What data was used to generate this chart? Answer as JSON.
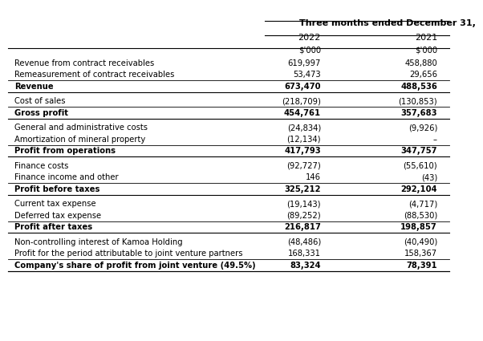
{
  "title": "Three months ended December 31,",
  "col_headers": [
    "2022",
    "2021"
  ],
  "sub_headers": [
    "$'000",
    "$'000"
  ],
  "rows": [
    {
      "label": "Revenue from contract receivables",
      "vals": [
        "619,997",
        "458,880"
      ],
      "bold": false,
      "underline": false,
      "top_line": false,
      "space_before": false
    },
    {
      "label": "Remeasurement of contract receivables",
      "vals": [
        "53,473",
        "29,656"
      ],
      "bold": false,
      "underline": false,
      "top_line": false,
      "space_before": false
    },
    {
      "label": "Revenue",
      "vals": [
        "673,470",
        "488,536"
      ],
      "bold": true,
      "underline": true,
      "top_line": true,
      "space_before": false
    },
    {
      "label": "Cost of sales",
      "vals": [
        "(218,709)",
        "(130,853)"
      ],
      "bold": false,
      "underline": false,
      "top_line": false,
      "space_before": true
    },
    {
      "label": "Gross profit",
      "vals": [
        "454,761",
        "357,683"
      ],
      "bold": true,
      "underline": true,
      "top_line": true,
      "space_before": false
    },
    {
      "label": "General and administrative costs",
      "vals": [
        "(24,834)",
        "(9,926)"
      ],
      "bold": false,
      "underline": false,
      "top_line": false,
      "space_before": true
    },
    {
      "label": "Amortization of mineral property",
      "vals": [
        "(12,134)",
        "–"
      ],
      "bold": false,
      "underline": false,
      "top_line": false,
      "space_before": false
    },
    {
      "label": "Profit from operations",
      "vals": [
        "417,793",
        "347,757"
      ],
      "bold": true,
      "underline": true,
      "top_line": true,
      "space_before": false
    },
    {
      "label": "Finance costs",
      "vals": [
        "(92,727)",
        "(55,610)"
      ],
      "bold": false,
      "underline": false,
      "top_line": false,
      "space_before": true
    },
    {
      "label": "Finance income and other",
      "vals": [
        "146",
        "(43)"
      ],
      "bold": false,
      "underline": false,
      "top_line": false,
      "space_before": false
    },
    {
      "label": "Profit before taxes",
      "vals": [
        "325,212",
        "292,104"
      ],
      "bold": true,
      "underline": true,
      "top_line": true,
      "space_before": false
    },
    {
      "label": "Current tax expense",
      "vals": [
        "(19,143)",
        "(4,717)"
      ],
      "bold": false,
      "underline": false,
      "top_line": false,
      "space_before": true
    },
    {
      "label": "Deferred tax expense",
      "vals": [
        "(89,252)",
        "(88,530)"
      ],
      "bold": false,
      "underline": false,
      "top_line": false,
      "space_before": false
    },
    {
      "label": "Profit after taxes",
      "vals": [
        "216,817",
        "198,857"
      ],
      "bold": true,
      "underline": true,
      "top_line": true,
      "space_before": false
    },
    {
      "label": "Non-controlling interest of Kamoa Holding",
      "vals": [
        "(48,486)",
        "(40,490)"
      ],
      "bold": false,
      "underline": false,
      "top_line": false,
      "space_before": true
    },
    {
      "label": "Profit for the period attributable to joint venture partners",
      "vals": [
        "168,331",
        "158,367"
      ],
      "bold": false,
      "underline": false,
      "top_line": false,
      "space_before": false
    },
    {
      "label": "Company's share of profit from joint venture (49.5%)",
      "vals": [
        "83,324",
        "78,391"
      ],
      "bold": true,
      "underline": true,
      "top_line": true,
      "space_before": false
    }
  ],
  "bg_color": "#ffffff",
  "text_color": "#000000",
  "line_color": "#000000",
  "font_size": 7.2,
  "header_font_size": 8.0
}
